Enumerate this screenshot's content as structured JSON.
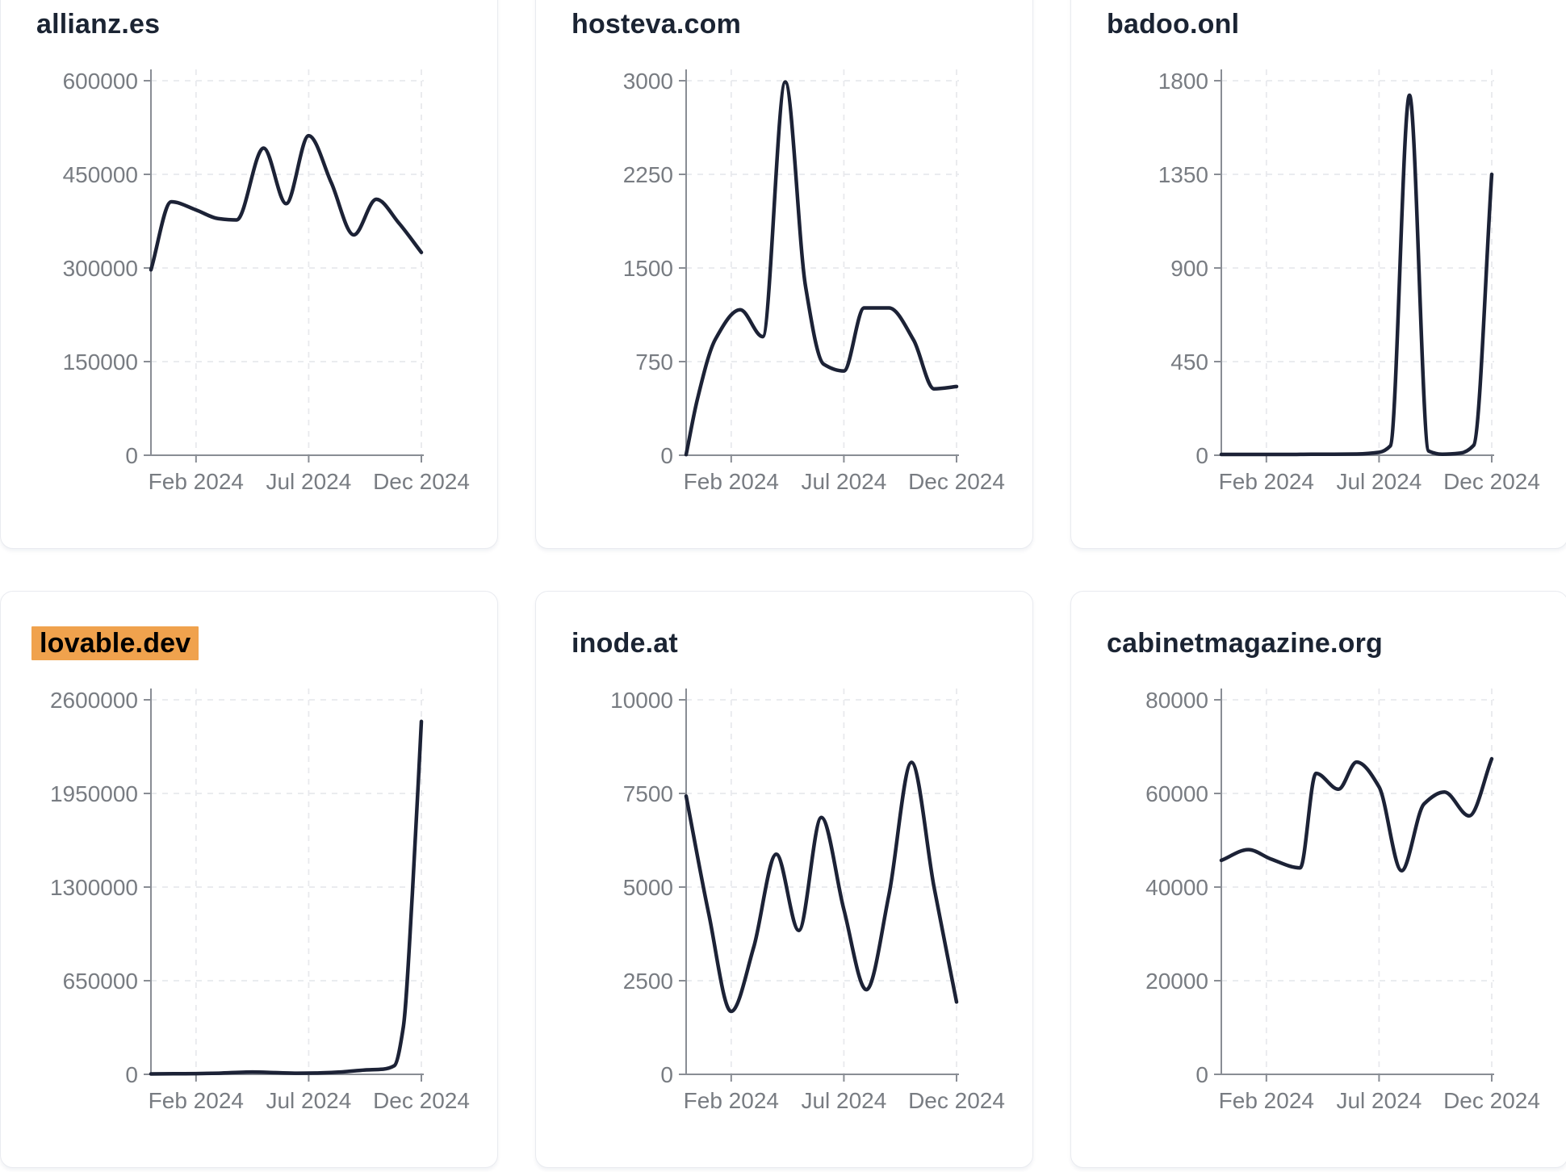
{
  "page": {
    "background": "#ffffff",
    "description": "dashboard grid of six domain traffic line charts"
  },
  "styles": {
    "line_color": "#1c2236",
    "axis_color": "#898d94",
    "tick_label_color": "#787c82",
    "grid_color": "#e8e9ed",
    "title_color": "#1b2433",
    "highlight_color": "#f0a24d",
    "highlight_text_color": "#000000",
    "card_background": "#ffffff",
    "card_border_color": "#e9ebf0"
  },
  "chart_data": [
    {
      "type": "line",
      "title": "allianz.es",
      "title_highlighted": false,
      "x_tick_labels": [
        "Feb 2024",
        "Jul 2024",
        "Dec 2024"
      ],
      "x_tick_positions_months": [
        2,
        7,
        12
      ],
      "x_domain_months": [
        0,
        12
      ],
      "y_ticks": [
        0,
        150000,
        300000,
        450000,
        600000
      ],
      "ylim": [
        0,
        600000
      ],
      "grid": true,
      "legend": "none",
      "points": [
        [
          0,
          297000
        ],
        [
          0.9,
          406000
        ],
        [
          2,
          393000
        ],
        [
          3,
          379000
        ],
        [
          3.8,
          377000
        ],
        [
          5,
          492000
        ],
        [
          6,
          403000
        ],
        [
          7,
          512000
        ],
        [
          8,
          437000
        ],
        [
          9,
          353000
        ],
        [
          10,
          410000
        ],
        [
          11,
          372000
        ],
        [
          12,
          325000
        ]
      ]
    },
    {
      "type": "line",
      "title": "hosteva.com",
      "title_highlighted": false,
      "x_tick_labels": [
        "Feb 2024",
        "Jul 2024",
        "Dec 2024"
      ],
      "x_tick_positions_months": [
        2,
        7,
        12
      ],
      "x_domain_months": [
        0,
        12
      ],
      "y_ticks": [
        0,
        750,
        1500,
        2250,
        3000
      ],
      "ylim": [
        0,
        3000
      ],
      "grid": true,
      "legend": "none",
      "points": [
        [
          0,
          5
        ],
        [
          0.5,
          450
        ],
        [
          1.3,
          930
        ],
        [
          2.4,
          1165
        ],
        [
          3.4,
          950
        ],
        [
          4.4,
          2990
        ],
        [
          5.3,
          1350
        ],
        [
          6.1,
          730
        ],
        [
          7,
          675
        ],
        [
          7.9,
          1180
        ],
        [
          9,
          1180
        ],
        [
          10.1,
          920
        ],
        [
          11,
          532
        ],
        [
          12,
          550
        ]
      ]
    },
    {
      "type": "line",
      "title": "badoo.onl",
      "title_highlighted": false,
      "x_tick_labels": [
        "Feb 2024",
        "Jul 2024",
        "Dec 2024"
      ],
      "x_tick_positions_months": [
        2,
        7,
        12
      ],
      "x_domain_months": [
        0,
        12
      ],
      "y_ticks": [
        0,
        450,
        900,
        1350,
        1800
      ],
      "ylim": [
        0,
        1800
      ],
      "grid": true,
      "legend": "none",
      "points": [
        [
          0,
          4
        ],
        [
          1,
          4
        ],
        [
          2,
          4
        ],
        [
          3,
          4
        ],
        [
          4,
          5
        ],
        [
          5,
          5
        ],
        [
          6,
          6
        ],
        [
          7,
          14
        ],
        [
          7.5,
          45
        ],
        [
          8.35,
          1730
        ],
        [
          9.2,
          20
        ],
        [
          9.8,
          5
        ],
        [
          10.6,
          10
        ],
        [
          11.2,
          48
        ],
        [
          12,
          1350
        ]
      ]
    },
    {
      "type": "line",
      "title": "lovable.dev",
      "title_highlighted": true,
      "x_tick_labels": [
        "Feb 2024",
        "Jul 2024",
        "Dec 2024"
      ],
      "x_tick_positions_months": [
        2,
        7,
        12
      ],
      "x_domain_months": [
        0,
        12
      ],
      "y_ticks": [
        0,
        650000,
        1300000,
        1950000,
        2600000
      ],
      "ylim": [
        0,
        2600000
      ],
      "grid": true,
      "legend": "none",
      "points": [
        [
          0,
          3000
        ],
        [
          1,
          4000
        ],
        [
          2,
          5000
        ],
        [
          3,
          8000
        ],
        [
          4.5,
          16000
        ],
        [
          5.5,
          12000
        ],
        [
          6.5,
          8000
        ],
        [
          7.3,
          9000
        ],
        [
          8.5,
          17000
        ],
        [
          9.5,
          30000
        ],
        [
          10.3,
          36000
        ],
        [
          10.8,
          60000
        ],
        [
          11.2,
          330000
        ],
        [
          11.6,
          1250000
        ],
        [
          12,
          2450000
        ]
      ]
    },
    {
      "type": "line",
      "title": "inode.at",
      "title_highlighted": false,
      "x_tick_labels": [
        "Feb 2024",
        "Jul 2024",
        "Dec 2024"
      ],
      "x_tick_positions_months": [
        2,
        7,
        12
      ],
      "x_domain_months": [
        0,
        12
      ],
      "y_ticks": [
        0,
        2500,
        5000,
        7500,
        10000
      ],
      "ylim": [
        0,
        10000
      ],
      "grid": true,
      "legend": "none",
      "points": [
        [
          0,
          7430
        ],
        [
          1,
          4300
        ],
        [
          2,
          1680
        ],
        [
          3,
          3400
        ],
        [
          4,
          5880
        ],
        [
          5,
          3840
        ],
        [
          6,
          6860
        ],
        [
          7,
          4400
        ],
        [
          8,
          2260
        ],
        [
          9,
          4800
        ],
        [
          10,
          8330
        ],
        [
          11,
          5000
        ],
        [
          12,
          1930
        ]
      ]
    },
    {
      "type": "line",
      "title": "cabinetmagazine.org",
      "title_highlighted": false,
      "x_tick_labels": [
        "Feb 2024",
        "Jul 2024",
        "Dec 2024"
      ],
      "x_tick_positions_months": [
        2,
        7,
        12
      ],
      "x_domain_months": [
        0,
        12
      ],
      "y_ticks": [
        0,
        20000,
        40000,
        60000,
        80000
      ],
      "ylim": [
        0,
        80000
      ],
      "grid": true,
      "legend": "none",
      "points": [
        [
          0,
          45700
        ],
        [
          1.2,
          48000
        ],
        [
          2.2,
          46000
        ],
        [
          3.5,
          44100
        ],
        [
          4.2,
          64300
        ],
        [
          5.2,
          60900
        ],
        [
          6,
          66700
        ],
        [
          7,
          61400
        ],
        [
          8,
          43500
        ],
        [
          9,
          57800
        ],
        [
          9.9,
          60300
        ],
        [
          11,
          55200
        ],
        [
          12,
          67400
        ]
      ]
    }
  ]
}
